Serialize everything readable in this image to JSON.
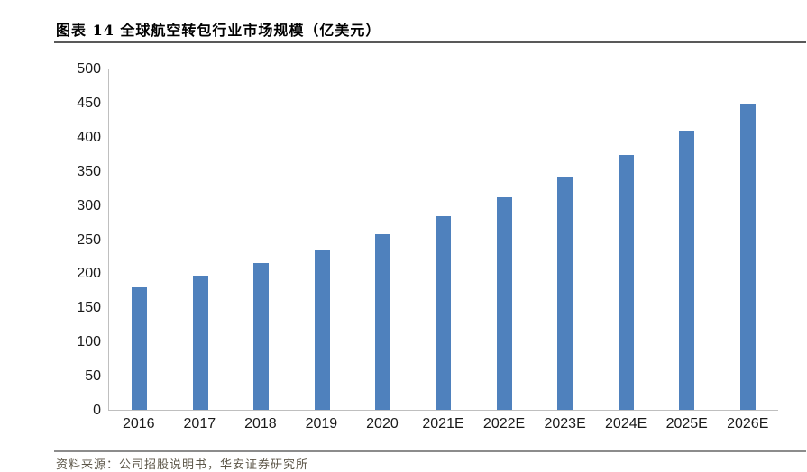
{
  "page": {
    "title": "图表 14 全球航空转包行业市场规模（亿美元）",
    "source": "资料来源：公司招股说明书，华安证券研究所"
  },
  "chart_data": {
    "type": "bar",
    "title": "全球航空转包行业市场规模（亿美元）",
    "categories": [
      "2016",
      "2017",
      "2018",
      "2019",
      "2020",
      "2021E",
      "2022E",
      "2023E",
      "2024E",
      "2025E",
      "2026E"
    ],
    "values": [
      180,
      197,
      215,
      236,
      258,
      284,
      312,
      342,
      375,
      410,
      450
    ],
    "xlabel": "",
    "ylabel": "",
    "ylim": [
      0,
      500
    ],
    "yticks": [
      0,
      50,
      100,
      150,
      200,
      250,
      300,
      350,
      400,
      450,
      500
    ],
    "grid": false,
    "legend": false,
    "bar_color": "#4F81BD",
    "axis_color": "#BFBFBF"
  }
}
